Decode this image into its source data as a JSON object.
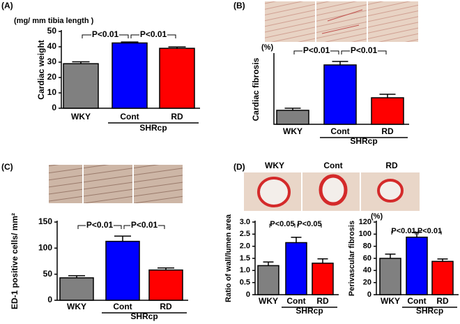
{
  "chart_data": [
    {
      "type": "bar",
      "panel": "(A)",
      "unit": "(mg/ mm tibia length )",
      "ylabel": "Cardiac weight",
      "categories": [
        "WKY",
        "Cont",
        "RD"
      ],
      "group_label": "SHRcp",
      "values": [
        29,
        42.5,
        39
      ],
      "errors": [
        1.2,
        0.6,
        0.9
      ],
      "colors": [
        "#808080",
        "#0000ff",
        "#ff0000"
      ],
      "ylim": [
        0,
        50
      ],
      "yticks": [
        0,
        10,
        20,
        30,
        40,
        50
      ],
      "annotations": [
        "P<0.01",
        "P<0.01"
      ]
    },
    {
      "type": "bar",
      "panel": "(B)",
      "unit": "(%)",
      "ylabel": "Cardiac fibrosis",
      "categories": [
        "WKY",
        "Cont",
        "RD"
      ],
      "group_label": "SHRcp",
      "values": [
        1.0,
        4.25,
        1.9
      ],
      "errors": [
        0.15,
        0.25,
        0.25
      ],
      "colors": [
        "#808080",
        "#0000ff",
        "#ff0000"
      ],
      "ylim": [
        0,
        5
      ],
      "annotations": [
        "P<0.01",
        "P<0.01"
      ]
    },
    {
      "type": "bar",
      "panel": "(C)",
      "ylabel": "ED-1 positive cells/ mm²",
      "categories": [
        "WKY",
        "Cont",
        "RD"
      ],
      "group_label": "SHRcp",
      "values": [
        43,
        113,
        58
      ],
      "errors": [
        4,
        10,
        4
      ],
      "colors": [
        "#808080",
        "#0000ff",
        "#ff0000"
      ],
      "ylim": [
        0,
        150
      ],
      "yticks": [
        0,
        50,
        100,
        150
      ],
      "annotations": [
        "P<0.01",
        "P<0.01"
      ]
    },
    {
      "type": "bar",
      "panel": "(D)",
      "image_labels": [
        "WKY",
        "Cont",
        "RD"
      ],
      "ylabel": "Ratio of wall/lumen area",
      "categories": [
        "WKY",
        "Cont",
        "RD"
      ],
      "group_label": "SHRcp",
      "values": [
        1.2,
        2.15,
        1.3
      ],
      "errors": [
        0.15,
        0.22,
        0.18
      ],
      "colors": [
        "#808080",
        "#0000ff",
        "#ff0000"
      ],
      "ylim": [
        0,
        3
      ],
      "yticks": [
        0,
        {
          "value": 0.5,
          "label": "0.5"
        },
        {
          "value": 1,
          "label": "1.0"
        },
        {
          "value": 1.5,
          "label": "1.5"
        },
        {
          "value": 2,
          "label": "2.0"
        },
        {
          "value": 2.5,
          "label": "2.5"
        },
        {
          "value": 3,
          "label": "3.0"
        }
      ],
      "annotations": [
        "P<0.05",
        "P<0.05"
      ]
    },
    {
      "type": "bar",
      "unit": "(%)",
      "ylabel": "Perivascular fibrosis",
      "categories": [
        "WKY",
        "Cont",
        "RD"
      ],
      "group_label": "SHRcp",
      "values": [
        60,
        95,
        55
      ],
      "errors": [
        7,
        8,
        4
      ],
      "colors": [
        "#808080",
        "#0000ff",
        "#ff0000"
      ],
      "ylim": [
        0,
        120
      ],
      "yticks": [
        0,
        20,
        40,
        60,
        80,
        100,
        120
      ],
      "annotations": [
        "P<0.01",
        "P<0.01"
      ]
    }
  ]
}
